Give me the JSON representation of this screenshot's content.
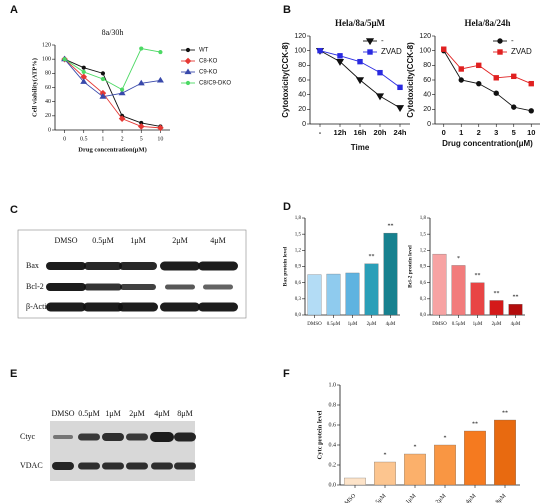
{
  "panels": [
    "A",
    "B",
    "C",
    "D",
    "E",
    "F"
  ],
  "blots": {
    "C": {
      "columns": [
        "DMSO",
        "0.5μM",
        "1μM",
        "2μM",
        "4μM"
      ],
      "rows": [
        "Bax",
        "Bcl-2",
        "β-Actin"
      ]
    },
    "E": {
      "columns": [
        "DMSO",
        "0.5μM",
        "1μM",
        "2μM",
        "4μM",
        "8μM"
      ],
      "rows": [
        "Ctyc",
        "VDAC"
      ]
    }
  },
  "chart_data": [
    {
      "type": "line",
      "title": "8a/30h",
      "xlabel": "Drug concentration(μM)",
      "ylabel": "Cell viability(ATP%)",
      "categories": [
        "0",
        "0.5",
        "1",
        "2",
        "5",
        "10"
      ],
      "ylim": [
        0,
        120
      ],
      "yticks": [
        0,
        20,
        40,
        60,
        80,
        100,
        120
      ],
      "legend": "right",
      "series": [
        {
          "name": "WT",
          "color": "#111111",
          "marker": "circle",
          "values": [
            100,
            88,
            80,
            20,
            10,
            5
          ]
        },
        {
          "name": "C8-KO",
          "color": "#e53935",
          "marker": "diamond",
          "values": [
            100,
            75,
            52,
            16,
            5,
            3
          ]
        },
        {
          "name": "C9-KO",
          "color": "#3949ab",
          "marker": "triangle",
          "values": [
            100,
            68,
            47,
            52,
            66,
            70
          ]
        },
        {
          "name": "C8/C9-DKO",
          "color": "#4cd964",
          "marker": "circle",
          "values": [
            100,
            82,
            72,
            57,
            115,
            110
          ]
        }
      ]
    },
    {
      "type": "line",
      "title": "Hela/8a/5μM",
      "xlabel": "Time",
      "ylabel": "Cytotoxicity(CCK-8)",
      "categories": [
        "-",
        "12h",
        "16h",
        "20h",
        "24h"
      ],
      "ylim": [
        0,
        120
      ],
      "yticks": [
        0,
        20,
        40,
        60,
        80,
        100,
        120
      ],
      "legend": "upper right",
      "series": [
        {
          "name": "-",
          "color": "#111111",
          "marker": "triangle-down",
          "values": [
            100,
            85,
            60,
            38,
            22
          ]
        },
        {
          "name": "ZVAD",
          "color": "#2a2ae0",
          "marker": "square",
          "values": [
            100,
            93,
            85,
            70,
            50
          ]
        }
      ]
    },
    {
      "type": "line",
      "title": "Hela/8a/24h",
      "xlabel": "Drug concentration(μM)",
      "ylabel": "Cytotoxicity(CCK-8)",
      "categories": [
        "0",
        "1",
        "2",
        "3",
        "5",
        "10"
      ],
      "ylim": [
        0,
        120
      ],
      "yticks": [
        0,
        20,
        40,
        60,
        80,
        100,
        120
      ],
      "legend": "upper right",
      "series": [
        {
          "name": "-",
          "color": "#111111",
          "marker": "circle",
          "values": [
            100,
            60,
            55,
            42,
            23,
            18
          ]
        },
        {
          "name": "ZVAD",
          "color": "#e02020",
          "marker": "square",
          "values": [
            102,
            75,
            80,
            63,
            65,
            55
          ]
        }
      ]
    },
    {
      "type": "bar",
      "ylabel": "Bax protein level",
      "categories": [
        "DMSO",
        "0.5μM",
        "1μM",
        "2μM",
        "4μM"
      ],
      "values": [
        0.75,
        0.76,
        0.78,
        0.95,
        1.52
      ],
      "significance": [
        null,
        null,
        null,
        "**",
        "**"
      ],
      "colors": [
        "#b3dcf5",
        "#8fcbee",
        "#5fb3e0",
        "#2a9fb8",
        "#17818f"
      ],
      "ylim": [
        0,
        1.8
      ],
      "yticks": [
        {
          "value": 0,
          "label": "0,0"
        },
        {
          "value": 0.3,
          "label": "0,3"
        },
        {
          "value": 0.6,
          "label": "0,6"
        },
        {
          "value": 0.9,
          "label": "0,9"
        },
        {
          "value": 1.2,
          "label": "1,2"
        },
        {
          "value": 1.5,
          "label": "1,5"
        },
        {
          "value": 1.8,
          "label": "1,8"
        }
      ]
    },
    {
      "type": "bar",
      "ylabel": "Bcl-2 protein level",
      "categories": [
        "DMSO",
        "0.5μM",
        "1μM",
        "2μM",
        "4μM"
      ],
      "values": [
        1.13,
        0.92,
        0.6,
        0.27,
        0.2
      ],
      "significance": [
        null,
        "*",
        "**",
        "**",
        "**"
      ],
      "colors": [
        "#f7a3a3",
        "#f27c7c",
        "#e84545",
        "#d41a1a",
        "#b30d0d"
      ],
      "ylim": [
        0,
        1.8
      ],
      "yticks": [
        {
          "value": 0,
          "label": "0,0"
        },
        {
          "value": 0.3,
          "label": "0,3"
        },
        {
          "value": 0.6,
          "label": "0,6"
        },
        {
          "value": 0.9,
          "label": "0,9"
        },
        {
          "value": 1.2,
          "label": "1,2"
        },
        {
          "value": 1.5,
          "label": "1,5"
        },
        {
          "value": 1.8,
          "label": "1,8"
        }
      ]
    },
    {
      "type": "bar",
      "ylabel": "Cytc protein level",
      "categories": [
        "DMSO",
        "0.5μM",
        "1μM",
        "2μM",
        "4μM",
        "8μM"
      ],
      "values": [
        0.07,
        0.23,
        0.31,
        0.4,
        0.54,
        0.65
      ],
      "significance": [
        null,
        "*",
        "*",
        "*",
        "**",
        "**"
      ],
      "colors": [
        "#fde3c8",
        "#fcc58f",
        "#fbb06b",
        "#f99643",
        "#f57a1f",
        "#e86a10"
      ],
      "ylim": [
        0,
        1.0
      ],
      "yticks": [
        {
          "value": 0,
          "label": "0.0"
        },
        {
          "value": 0.2,
          "label": "0.2"
        },
        {
          "value": 0.4,
          "label": "0.4"
        },
        {
          "value": 0.6,
          "label": "0.6"
        },
        {
          "value": 0.8,
          "label": "0.8"
        },
        {
          "value": 1.0,
          "label": "1.0"
        }
      ]
    }
  ]
}
